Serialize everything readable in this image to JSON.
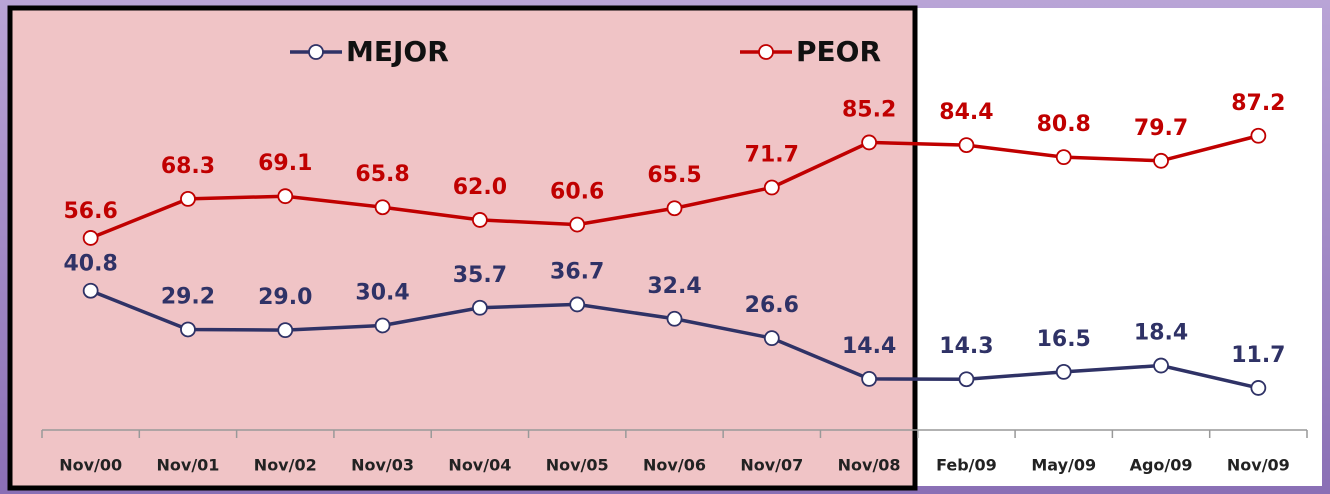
{
  "chart_data": {
    "type": "line",
    "categories": [
      "Nov/00",
      "Nov/01",
      "Nov/02",
      "Nov/03",
      "Nov/04",
      "Nov/05",
      "Nov/06",
      "Nov/07",
      "Nov/08",
      "Feb/09",
      "May/09",
      "Ago/09",
      "Nov/09"
    ],
    "series": [
      {
        "name": "MEJOR",
        "color": "#2f3266",
        "values": [
          40.8,
          29.2,
          29.0,
          30.4,
          35.7,
          36.7,
          32.4,
          26.6,
          14.4,
          14.3,
          16.5,
          18.4,
          11.7
        ]
      },
      {
        "name": "PEOR",
        "color": "#c00000",
        "values": [
          56.6,
          68.3,
          69.1,
          65.8,
          62.0,
          60.6,
          65.5,
          71.7,
          85.2,
          84.4,
          80.8,
          79.7,
          87.2
        ],
        "value_labels": [
          "56.6",
          "68.3",
          "69.1",
          "65.8",
          "62.0",
          "60.6",
          "65.5",
          "71.7",
          "85.2",
          "84.4",
          "80.8",
          "79.7",
          "87.2"
        ]
      }
    ],
    "mejor_value_labels": [
      "40.8",
      "29.2",
      "29.0",
      "30.4",
      "35.7",
      "36.7",
      "32.4",
      "26.6",
      "14.4",
      "14.3",
      "16.5",
      "18.4",
      "11.7"
    ]
  }
}
